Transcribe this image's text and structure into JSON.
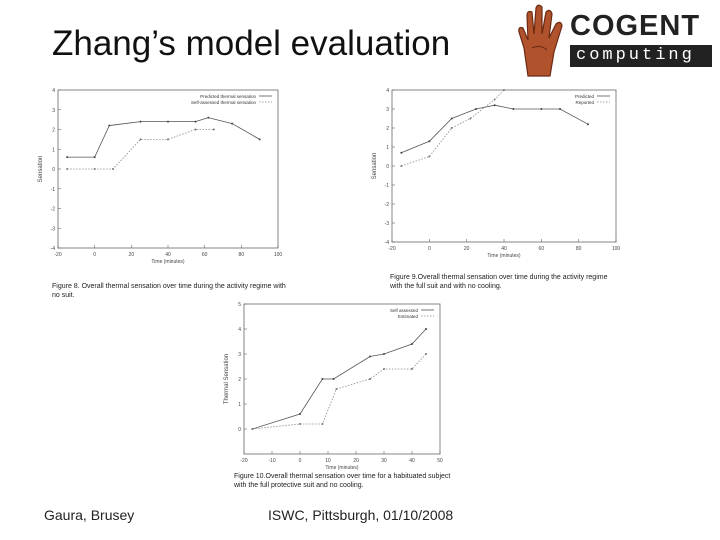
{
  "slide": {
    "title": "Zhang’s model evaluation",
    "logo": {
      "word1": "COGENT",
      "word2": "computing"
    },
    "footer_left": "Gaura, Brusey",
    "footer_center": "ISWC, Pittsburgh, 01/10/2008",
    "captions": {
      "fig8": "Figure 8. Overall thermal sensation over time during the activity regime with no suit.",
      "fig9": "Figure 9.Overall thermal sensation over time during the activity regime with the full suit and with no cooling.",
      "fig10": "Figure 10.Overall thermal sensation over time for a habituated subject with the full protective suit and no cooling."
    }
  },
  "chart_data": [
    {
      "id": "fig8",
      "type": "line",
      "xlim": [
        -20,
        100
      ],
      "ylim": [
        -4,
        4
      ],
      "xticks": [
        -20,
        0,
        20,
        40,
        60,
        80,
        100
      ],
      "yticks": [
        4,
        3,
        2,
        1,
        0,
        -1,
        -2,
        -3,
        -4
      ],
      "xlabel": "Time (minutes)",
      "ylabel": "Sensation",
      "legend_position": "top-right",
      "series": [
        {
          "name": "Predicted thermal sensation",
          "style": "solid",
          "x": [
            -15,
            0,
            8,
            25,
            40,
            55,
            62,
            75,
            90
          ],
          "y": [
            0.6,
            0.6,
            2.2,
            2.4,
            2.4,
            2.4,
            2.6,
            2.3,
            1.5
          ]
        },
        {
          "name": "Self-assessed thermal sensation",
          "style": "dotted",
          "x": [
            -15,
            0,
            10,
            25,
            40,
            55,
            65
          ],
          "y": [
            0,
            0,
            0,
            1.5,
            1.5,
            2.0,
            2.0
          ]
        }
      ]
    },
    {
      "id": "fig9",
      "type": "line",
      "xlim": [
        -20,
        100
      ],
      "ylim": [
        -4,
        4
      ],
      "xticks": [
        -20,
        0,
        20,
        40,
        60,
        80,
        100
      ],
      "yticks": [
        4,
        3,
        2,
        1,
        0,
        -1,
        -2,
        -3,
        -4
      ],
      "xlabel": "Time (minutes)",
      "ylabel": "Sensation",
      "legend_position": "top-right",
      "series": [
        {
          "name": "Predicted",
          "style": "solid",
          "x": [
            -15,
            0,
            12,
            25,
            35,
            45,
            60,
            70,
            85
          ],
          "y": [
            0.7,
            1.3,
            2.5,
            3.0,
            3.2,
            3.0,
            3.0,
            3.0,
            2.2
          ]
        },
        {
          "name": "Reported",
          "style": "dotted",
          "x": [
            -15,
            0,
            12,
            22,
            35,
            40
          ],
          "y": [
            0,
            0.5,
            2.0,
            2.5,
            3.5,
            4.0
          ]
        }
      ]
    },
    {
      "id": "fig10",
      "type": "line",
      "xlim": [
        -20,
        50
      ],
      "ylim": [
        -1,
        5
      ],
      "xticks": [
        -20,
        -10,
        0,
        10,
        20,
        30,
        40,
        50
      ],
      "yticks": [
        5,
        4,
        3,
        2,
        1,
        0
      ],
      "xlabel": "Time (minutes)",
      "ylabel": "Thermal Sensation",
      "legend_position": "top-right",
      "series": [
        {
          "name": "Self assessed",
          "style": "solid",
          "x": [
            -17,
            0,
            8,
            12,
            25,
            30,
            40,
            45
          ],
          "y": [
            0,
            0.6,
            2.0,
            2.0,
            2.9,
            3.0,
            3.4,
            4.0
          ]
        },
        {
          "name": "Estimated",
          "style": "dotted",
          "x": [
            -17,
            0,
            8,
            13,
            25,
            30,
            40,
            45
          ],
          "y": [
            0,
            0.2,
            0.2,
            1.6,
            2.0,
            2.4,
            2.4,
            3.0
          ]
        }
      ]
    }
  ]
}
